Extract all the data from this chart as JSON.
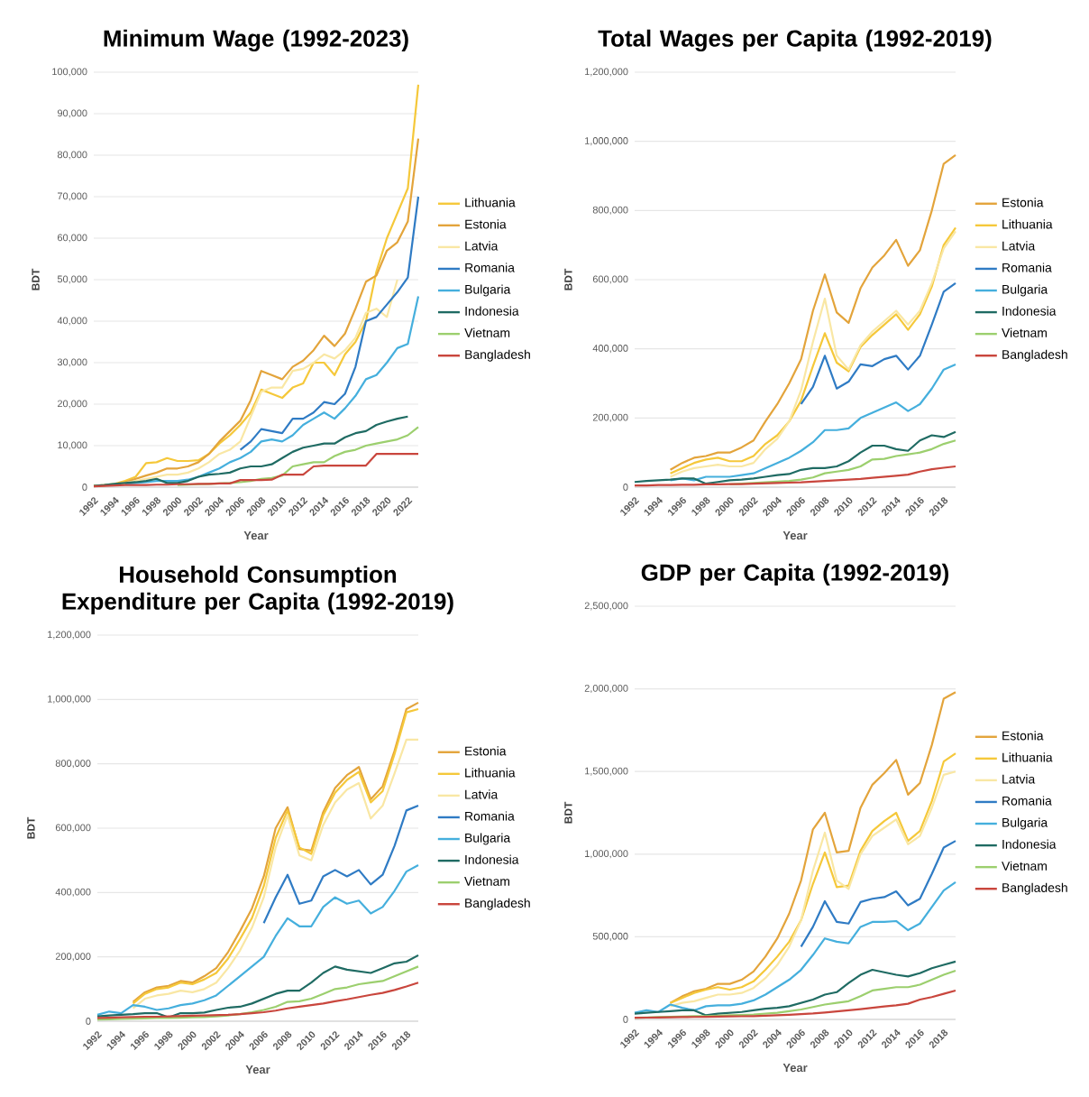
{
  "chart_data": [
    {
      "type": "line",
      "title": "Minimum Wage (1992-2023)",
      "xlabel": "Year",
      "ylabel": "BDT",
      "grid": "y",
      "legend": "right",
      "x": [
        1992,
        1993,
        1994,
        1995,
        1996,
        1997,
        1998,
        1999,
        2000,
        2001,
        2002,
        2003,
        2004,
        2005,
        2006,
        2007,
        2008,
        2009,
        2010,
        2011,
        2012,
        2013,
        2014,
        2015,
        2016,
        2017,
        2018,
        2019,
        2020,
        2021,
        2022,
        2023
      ],
      "xlim": [
        1992,
        2023
      ],
      "xticks": [
        1992,
        1994,
        1996,
        1998,
        2000,
        2002,
        2004,
        2006,
        2008,
        2010,
        2012,
        2014,
        2016,
        2018,
        2020,
        2022
      ],
      "ylim": [
        0,
        100000
      ],
      "yticks": [
        0,
        {
          "value": 10000,
          "label": "10,000"
        },
        {
          "value": 20000,
          "label": "20,000"
        },
        {
          "value": 30000,
          "label": "30,000"
        },
        {
          "value": 40000,
          "label": "40,000"
        },
        {
          "value": 50000,
          "label": "50,000"
        },
        {
          "value": 60000,
          "label": "60,000"
        },
        {
          "value": 70000,
          "label": "70,000"
        },
        {
          "value": 80000,
          "label": "80,000"
        },
        {
          "value": 90000,
          "label": "90,000"
        },
        {
          "value": 100000,
          "label": "100,000"
        }
      ],
      "series": [
        {
          "name": "Lithuania",
          "color": "#f5c83a",
          "values": [
            300,
            500,
            800,
            1500,
            2500,
            5800,
            6000,
            7000,
            6300,
            6300,
            6500,
            8000,
            10500,
            12500,
            15000,
            18000,
            23500,
            22500,
            21500,
            24000,
            25000,
            30000,
            30000,
            27000,
            32000,
            35000,
            40000,
            52000,
            60000,
            66000,
            72000,
            97000
          ]
        },
        {
          "name": "Estonia",
          "color": "#e3a43b",
          "values": [
            300,
            400,
            700,
            1200,
            2000,
            2800,
            3500,
            4500,
            4500,
            5000,
            6000,
            8000,
            11000,
            13500,
            16000,
            21000,
            28000,
            27000,
            26000,
            29000,
            30500,
            33000,
            36500,
            34000,
            37000,
            43000,
            49500,
            51000,
            57000,
            59000,
            64000,
            84000
          ]
        },
        {
          "name": "Latvia",
          "color": "#f9e7a4",
          "values": [
            200,
            400,
            700,
            1000,
            1500,
            2000,
            2500,
            3000,
            3000,
            3500,
            4500,
            6000,
            8000,
            9000,
            11000,
            17000,
            23000,
            24000,
            24000,
            28000,
            28500,
            30000,
            32000,
            31000,
            33000,
            36000,
            42000,
            43000,
            41000,
            50000,
            null,
            null
          ]
        },
        {
          "name": "Romania",
          "color": "#2f7bc4",
          "values": [
            null,
            null,
            null,
            null,
            null,
            null,
            null,
            null,
            null,
            null,
            null,
            null,
            null,
            null,
            9000,
            11000,
            14000,
            13500,
            13000,
            16500,
            16500,
            18000,
            20500,
            20000,
            22500,
            29000,
            40000,
            41000,
            44000,
            47000,
            50500,
            70000
          ]
        },
        {
          "name": "Bulgaria",
          "color": "#45afdd",
          "values": [
            null,
            null,
            null,
            800,
            1000,
            1200,
            1500,
            1500,
            1500,
            1800,
            2500,
            3500,
            4500,
            6000,
            7000,
            8500,
            11000,
            11500,
            11000,
            12500,
            15000,
            16500,
            18000,
            16500,
            19000,
            22000,
            26000,
            27000,
            30000,
            33500,
            34500,
            46000
          ]
        },
        {
          "name": "Indonesia",
          "color": "#1f6b63",
          "values": [
            300,
            500,
            800,
            1000,
            1200,
            1500,
            2000,
            1000,
            1000,
            1500,
            2500,
            3000,
            3200,
            3500,
            4500,
            5000,
            5000,
            5500,
            7000,
            8500,
            9500,
            10000,
            10500,
            10500,
            12000,
            13000,
            13500,
            15000,
            15800,
            16500,
            17000,
            null
          ]
        },
        {
          "name": "Vietnam",
          "color": "#9ccf6e",
          "values": [
            null,
            null,
            null,
            null,
            null,
            null,
            null,
            null,
            500,
            600,
            700,
            800,
            900,
            1000,
            1200,
            1500,
            2000,
            2200,
            2800,
            5000,
            5500,
            6000,
            6000,
            7500,
            8500,
            9000,
            10000,
            10500,
            11000,
            11500,
            12500,
            14500
          ]
        },
        {
          "name": "Bangladesh",
          "color": "#c9463d",
          "values": [
            200,
            300,
            400,
            500,
            500,
            500,
            600,
            600,
            700,
            700,
            800,
            800,
            900,
            900,
            1700,
            1700,
            1700,
            1800,
            3000,
            3000,
            3000,
            5000,
            5200,
            5200,
            5200,
            5200,
            5200,
            8000,
            8000,
            8000,
            8000,
            8000
          ]
        }
      ]
    },
    {
      "type": "line",
      "title": "Total Wages per Capita (1992-2019)",
      "xlabel": "Year",
      "ylabel": "BDT",
      "grid": "y",
      "legend": "right",
      "x": [
        1992,
        1993,
        1994,
        1995,
        1996,
        1997,
        1998,
        1999,
        2000,
        2001,
        2002,
        2003,
        2004,
        2005,
        2006,
        2007,
        2008,
        2009,
        2010,
        2011,
        2012,
        2013,
        2014,
        2015,
        2016,
        2017,
        2018,
        2019
      ],
      "xlim": [
        1992,
        2019
      ],
      "xticks": [
        1992,
        1994,
        1996,
        1998,
        2000,
        2002,
        2004,
        2006,
        2008,
        2010,
        2012,
        2014,
        2016,
        2018
      ],
      "ylim": [
        0,
        1200000
      ],
      "yticks": [
        0,
        {
          "value": 200000,
          "label": "200,000"
        },
        {
          "value": 400000,
          "label": "400,000"
        },
        {
          "value": 600000,
          "label": "600,000"
        },
        {
          "value": 800000,
          "label": "800,000"
        },
        {
          "value": 1000000,
          "label": "1,000,000"
        },
        {
          "value": 1200000,
          "label": "1,200,000"
        }
      ],
      "series": [
        {
          "name": "Estonia",
          "color": "#e3a43b",
          "values": [
            null,
            null,
            null,
            50000,
            70000,
            85000,
            90000,
            100000,
            100000,
            115000,
            135000,
            190000,
            240000,
            300000,
            370000,
            510000,
            615000,
            505000,
            475000,
            575000,
            635000,
            670000,
            715000,
            640000,
            685000,
            800000,
            935000,
            960000
          ]
        },
        {
          "name": "Lithuania",
          "color": "#f5c83a",
          "values": [
            null,
            null,
            null,
            40000,
            55000,
            70000,
            80000,
            85000,
            75000,
            75000,
            90000,
            125000,
            150000,
            190000,
            250000,
            350000,
            445000,
            360000,
            335000,
            405000,
            440000,
            470000,
            500000,
            455000,
            500000,
            580000,
            700000,
            750000
          ]
        },
        {
          "name": "Latvia",
          "color": "#f9e7a4",
          "values": [
            null,
            null,
            null,
            30000,
            45000,
            55000,
            60000,
            65000,
            60000,
            60000,
            70000,
            110000,
            140000,
            190000,
            280000,
            420000,
            545000,
            380000,
            340000,
            410000,
            450000,
            480000,
            510000,
            470000,
            510000,
            590000,
            690000,
            740000
          ]
        },
        {
          "name": "Romania",
          "color": "#2f7bc4",
          "values": [
            null,
            null,
            null,
            null,
            null,
            null,
            null,
            null,
            null,
            null,
            null,
            null,
            null,
            null,
            240000,
            290000,
            380000,
            285000,
            305000,
            355000,
            350000,
            370000,
            380000,
            340000,
            380000,
            470000,
            565000,
            590000
          ]
        },
        {
          "name": "Bulgaria",
          "color": "#45afdd",
          "values": [
            null,
            null,
            null,
            20000,
            25000,
            20000,
            30000,
            30000,
            30000,
            35000,
            40000,
            55000,
            70000,
            85000,
            105000,
            130000,
            165000,
            165000,
            170000,
            200000,
            215000,
            230000,
            245000,
            220000,
            240000,
            285000,
            340000,
            355000
          ]
        },
        {
          "name": "Indonesia",
          "color": "#1f6b63",
          "values": [
            15000,
            18000,
            20000,
            22000,
            25000,
            25000,
            10000,
            15000,
            20000,
            22000,
            25000,
            30000,
            35000,
            38000,
            50000,
            55000,
            55000,
            60000,
            75000,
            100000,
            120000,
            120000,
            110000,
            105000,
            135000,
            150000,
            145000,
            160000
          ]
        },
        {
          "name": "Vietnam",
          "color": "#9ccf6e",
          "values": [
            null,
            null,
            null,
            null,
            null,
            null,
            null,
            null,
            8000,
            10000,
            12000,
            14000,
            16000,
            18000,
            22000,
            28000,
            40000,
            45000,
            50000,
            60000,
            80000,
            82000,
            90000,
            95000,
            100000,
            110000,
            125000,
            135000
          ]
        },
        {
          "name": "Bangladesh",
          "color": "#c9463d",
          "values": [
            5000,
            5000,
            6000,
            6000,
            7000,
            7000,
            8000,
            8000,
            9000,
            9000,
            10000,
            11000,
            12000,
            13000,
            14000,
            16000,
            18000,
            20000,
            22000,
            24000,
            27000,
            30000,
            33000,
            36000,
            45000,
            52000,
            56000,
            60000
          ]
        }
      ]
    },
    {
      "type": "line",
      "title": "Household Consumption Expenditure per Capita (1992-2019)",
      "xlabel": "Year",
      "ylabel": "BDT",
      "grid": "y",
      "legend": "right",
      "x": [
        1992,
        1993,
        1994,
        1995,
        1996,
        1997,
        1998,
        1999,
        2000,
        2001,
        2002,
        2003,
        2004,
        2005,
        2006,
        2007,
        2008,
        2009,
        2010,
        2011,
        2012,
        2013,
        2014,
        2015,
        2016,
        2017,
        2018,
        2019
      ],
      "xlim": [
        1992,
        2019
      ],
      "xticks": [
        1992,
        1994,
        1996,
        1998,
        2000,
        2002,
        2004,
        2006,
        2008,
        2010,
        2012,
        2014,
        2016,
        2018
      ],
      "ylim": [
        0,
        1200000
      ],
      "yticks": [
        0,
        {
          "value": 200000,
          "label": "200,000"
        },
        {
          "value": 400000,
          "label": "400,000"
        },
        {
          "value": 600000,
          "label": "600,000"
        },
        {
          "value": 800000,
          "label": "800,000"
        },
        {
          "value": 1000000,
          "label": "1,000,000"
        },
        {
          "value": 1200000,
          "label": "1,200,000"
        }
      ],
      "series": [
        {
          "name": "Estonia",
          "color": "#e3a43b",
          "values": [
            null,
            null,
            null,
            60000,
            90000,
            105000,
            110000,
            125000,
            120000,
            140000,
            165000,
            215000,
            280000,
            350000,
            450000,
            600000,
            665000,
            535000,
            530000,
            650000,
            725000,
            765000,
            790000,
            690000,
            730000,
            840000,
            970000,
            990000
          ]
        },
        {
          "name": "Lithuania",
          "color": "#f5c83a",
          "values": [
            null,
            null,
            null,
            55000,
            85000,
            100000,
            105000,
            120000,
            115000,
            130000,
            150000,
            195000,
            255000,
            320000,
            420000,
            570000,
            655000,
            540000,
            520000,
            640000,
            710000,
            750000,
            775000,
            680000,
            715000,
            830000,
            960000,
            970000
          ]
        },
        {
          "name": "Latvia",
          "color": "#f9e7a4",
          "values": [
            null,
            null,
            null,
            40000,
            70000,
            80000,
            85000,
            95000,
            90000,
            100000,
            120000,
            165000,
            220000,
            290000,
            385000,
            540000,
            640000,
            515000,
            500000,
            610000,
            680000,
            720000,
            740000,
            630000,
            670000,
            770000,
            875000,
            875000
          ]
        },
        {
          "name": "Romania",
          "color": "#2f7bc4",
          "values": [
            null,
            null,
            null,
            null,
            null,
            null,
            null,
            null,
            null,
            null,
            null,
            null,
            null,
            null,
            305000,
            385000,
            455000,
            365000,
            375000,
            450000,
            470000,
            450000,
            470000,
            425000,
            455000,
            545000,
            655000,
            670000
          ]
        },
        {
          "name": "Bulgaria",
          "color": "#45afdd",
          "values": [
            20000,
            30000,
            25000,
            50000,
            45000,
            35000,
            40000,
            50000,
            55000,
            65000,
            80000,
            110000,
            140000,
            170000,
            200000,
            265000,
            320000,
            295000,
            295000,
            355000,
            385000,
            365000,
            375000,
            335000,
            355000,
            405000,
            465000,
            485000
          ]
        },
        {
          "name": "Indonesia",
          "color": "#1f6b63",
          "values": [
            15000,
            18000,
            20000,
            22000,
            25000,
            25000,
            12000,
            25000,
            25000,
            27000,
            35000,
            42000,
            45000,
            55000,
            70000,
            85000,
            95000,
            95000,
            120000,
            150000,
            170000,
            160000,
            155000,
            150000,
            165000,
            180000,
            185000,
            205000
          ]
        },
        {
          "name": "Vietnam",
          "color": "#9ccf6e",
          "values": [
            5000,
            6000,
            7000,
            8000,
            9000,
            10000,
            10000,
            11000,
            12000,
            13000,
            15000,
            18000,
            22000,
            28000,
            35000,
            45000,
            60000,
            62000,
            70000,
            85000,
            100000,
            105000,
            115000,
            120000,
            125000,
            140000,
            155000,
            170000
          ]
        },
        {
          "name": "Bangladesh",
          "color": "#c9463d",
          "values": [
            10000,
            11000,
            12000,
            13000,
            14000,
            14000,
            15000,
            16000,
            17000,
            18000,
            19000,
            20000,
            22000,
            25000,
            28000,
            33000,
            40000,
            45000,
            50000,
            55000,
            62000,
            68000,
            75000,
            82000,
            88000,
            97000,
            108000,
            120000
          ]
        }
      ]
    },
    {
      "type": "line",
      "title": "GDP per Capita (1992-2019)",
      "xlabel": "Year",
      "ylabel": "BDT",
      "grid": "y",
      "legend": "right",
      "x": [
        1992,
        1993,
        1994,
        1995,
        1996,
        1997,
        1998,
        1999,
        2000,
        2001,
        2002,
        2003,
        2004,
        2005,
        2006,
        2007,
        2008,
        2009,
        2010,
        2011,
        2012,
        2013,
        2014,
        2015,
        2016,
        2017,
        2018,
        2019
      ],
      "xlim": [
        1992,
        2019
      ],
      "xticks": [
        1992,
        1994,
        1996,
        1998,
        2000,
        2002,
        2004,
        2006,
        2008,
        2010,
        2012,
        2014,
        2016,
        2018
      ],
      "ylim": [
        0,
        2500000
      ],
      "yticks": [
        0,
        {
          "value": 500000,
          "label": "500,000"
        },
        {
          "value": 1000000,
          "label": "1,000,000"
        },
        {
          "value": 1500000,
          "label": "1,500,000"
        },
        {
          "value": 2000000,
          "label": "2,000,000"
        },
        {
          "value": 2500000,
          "label": "2,500,000"
        }
      ],
      "series": [
        {
          "name": "Estonia",
          "color": "#e3a43b",
          "values": [
            null,
            null,
            null,
            100000,
            140000,
            170000,
            185000,
            215000,
            215000,
            240000,
            290000,
            380000,
            490000,
            640000,
            840000,
            1150000,
            1250000,
            1010000,
            1020000,
            1280000,
            1420000,
            1490000,
            1570000,
            1360000,
            1430000,
            1660000,
            1940000,
            1980000
          ]
        },
        {
          "name": "Lithuania",
          "color": "#f5c83a",
          "values": [
            null,
            null,
            null,
            100000,
            130000,
            160000,
            180000,
            195000,
            180000,
            195000,
            230000,
            300000,
            380000,
            470000,
            600000,
            820000,
            1010000,
            800000,
            810000,
            1020000,
            1140000,
            1200000,
            1250000,
            1080000,
            1140000,
            1320000,
            1560000,
            1610000
          ]
        },
        {
          "name": "Latvia",
          "color": "#f9e7a4",
          "values": [
            null,
            null,
            null,
            80000,
            100000,
            110000,
            130000,
            150000,
            150000,
            160000,
            190000,
            250000,
            330000,
            440000,
            600000,
            900000,
            1130000,
            840000,
            790000,
            1000000,
            1110000,
            1160000,
            1210000,
            1060000,
            1110000,
            1280000,
            1480000,
            1500000
          ]
        },
        {
          "name": "Romania",
          "color": "#2f7bc4",
          "values": [
            null,
            null,
            null,
            null,
            null,
            null,
            null,
            null,
            null,
            null,
            null,
            null,
            null,
            null,
            440000,
            560000,
            715000,
            590000,
            580000,
            710000,
            730000,
            740000,
            775000,
            690000,
            730000,
            880000,
            1040000,
            1080000
          ]
        },
        {
          "name": "Bulgaria",
          "color": "#45afdd",
          "values": [
            40000,
            55000,
            45000,
            90000,
            70000,
            55000,
            80000,
            85000,
            85000,
            95000,
            115000,
            150000,
            195000,
            240000,
            300000,
            390000,
            490000,
            470000,
            460000,
            560000,
            590000,
            590000,
            595000,
            540000,
            580000,
            680000,
            780000,
            830000
          ]
        },
        {
          "name": "Indonesia",
          "color": "#1f6b63",
          "values": [
            35000,
            40000,
            45000,
            50000,
            55000,
            55000,
            25000,
            35000,
            40000,
            45000,
            55000,
            65000,
            70000,
            80000,
            100000,
            120000,
            150000,
            165000,
            220000,
            270000,
            300000,
            285000,
            270000,
            260000,
            280000,
            310000,
            330000,
            350000
          ]
        },
        {
          "name": "Vietnam",
          "color": "#9ccf6e",
          "values": [
            10000,
            12000,
            14000,
            16000,
            18000,
            20000,
            20000,
            22000,
            25000,
            27000,
            30000,
            35000,
            40000,
            50000,
            60000,
            75000,
            90000,
            100000,
            110000,
            140000,
            175000,
            185000,
            195000,
            195000,
            210000,
            240000,
            270000,
            295000
          ]
        },
        {
          "name": "Bangladesh",
          "color": "#c9463d",
          "values": [
            10000,
            11000,
            12000,
            13000,
            14000,
            15000,
            16000,
            17000,
            18000,
            19000,
            20000,
            22000,
            25000,
            28000,
            32000,
            36000,
            42000,
            48000,
            55000,
            62000,
            70000,
            78000,
            85000,
            95000,
            120000,
            135000,
            155000,
            175000
          ]
        }
      ]
    }
  ]
}
